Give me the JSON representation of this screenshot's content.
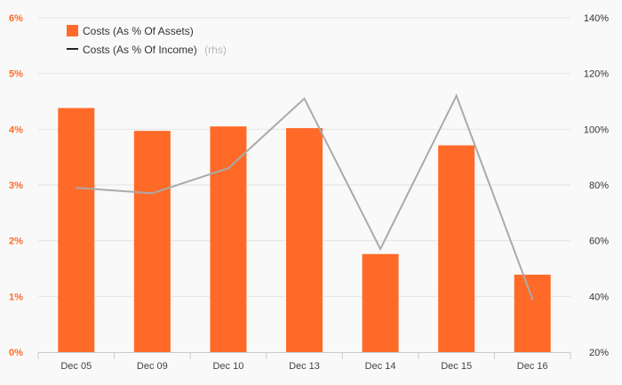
{
  "chart_data": {
    "type": "bar",
    "categories": [
      "Dec 05",
      "Dec 09",
      "Dec 10",
      "Dec 13",
      "Dec 14",
      "Dec 15",
      "Dec 16"
    ],
    "series": [
      {
        "name": "Costs (As % Of Assets)",
        "type": "bar",
        "axis": "left",
        "color": "#ff6a28",
        "values": [
          4.38,
          3.97,
          4.05,
          4.02,
          1.76,
          3.71,
          1.39
        ]
      },
      {
        "name": "Costs (As % Of Income)",
        "legend_suffix": "(rhs)",
        "type": "line",
        "axis": "right",
        "color": "#aaaaaa",
        "values": [
          79,
          77,
          86,
          111,
          57,
          112,
          39
        ]
      }
    ],
    "y_left": {
      "ylim": [
        0,
        6
      ],
      "ticks": [
        "0%",
        "1%",
        "2%",
        "3%",
        "4%",
        "5%",
        "6%"
      ],
      "tick_color": "#ff6a28"
    },
    "y_right": {
      "ylim": [
        20,
        140
      ],
      "ticks": [
        "20%",
        "40%",
        "60%",
        "80%",
        "100%",
        "120%",
        "140%"
      ]
    },
    "grid": true,
    "legend_position": "top-left"
  }
}
